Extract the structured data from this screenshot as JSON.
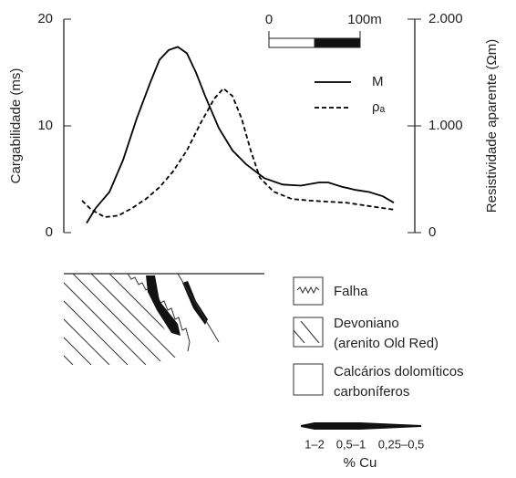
{
  "chart_data": {
    "type": "line",
    "y_label": "Cargabilidade (ms)",
    "y2_label": "Resistividade aparente (Ωm)",
    "xlim": [
      0,
      345
    ],
    "ylim": [
      0,
      20
    ],
    "yticks": [
      0,
      10,
      20
    ],
    "y2lim": [
      0,
      2000
    ],
    "y2ticks": [
      {
        "value": 0,
        "label": "0"
      },
      {
        "value": 1000,
        "label": "1.000"
      },
      {
        "value": 2000,
        "label": "2.000"
      }
    ],
    "scale_bar": [
      "0",
      "100m"
    ],
    "series": [
      {
        "name": "M",
        "color": "#000000",
        "dash": false,
        "x": [
          5,
          15,
          30,
          45,
          60,
          75,
          85,
          95,
          105,
          115,
          125,
          135,
          150,
          165,
          180,
          200,
          220,
          240,
          260,
          270,
          285,
          300,
          315,
          330,
          342
        ],
        "values": [
          0.9,
          2.3,
          3.8,
          6.8,
          10.7,
          14.1,
          16.2,
          17.1,
          17.4,
          16.8,
          15.0,
          12.8,
          9.8,
          7.7,
          6.4,
          5.1,
          4.5,
          4.4,
          4.7,
          4.7,
          4.3,
          4.0,
          3.8,
          3.4,
          2.8
        ]
      },
      {
        "name": "ρₐ",
        "color": "#000000",
        "dash": true,
        "axis": "y2",
        "x": [
          0,
          10,
          25,
          40,
          55,
          70,
          85,
          100,
          115,
          130,
          145,
          155,
          165,
          175,
          185,
          195,
          210,
          230,
          250,
          270,
          290,
          310,
          330,
          342
        ],
        "values": [
          300,
          215,
          145,
          160,
          230,
          315,
          425,
          575,
          770,
          1025,
          1255,
          1350,
          1280,
          1070,
          770,
          515,
          385,
          315,
          300,
          290,
          280,
          255,
          230,
          215
        ]
      }
    ]
  },
  "section_legend": {
    "items": [
      [
        "Falha"
      ],
      [
        "Devoniano",
        "(arenito Old Red)"
      ],
      [
        "Calcários dolomíticos",
        "carboníferos"
      ]
    ],
    "cu_grades": [
      "1–2",
      "0,5–1",
      "0,25–0,5"
    ],
    "cu_title": "% Cu"
  }
}
